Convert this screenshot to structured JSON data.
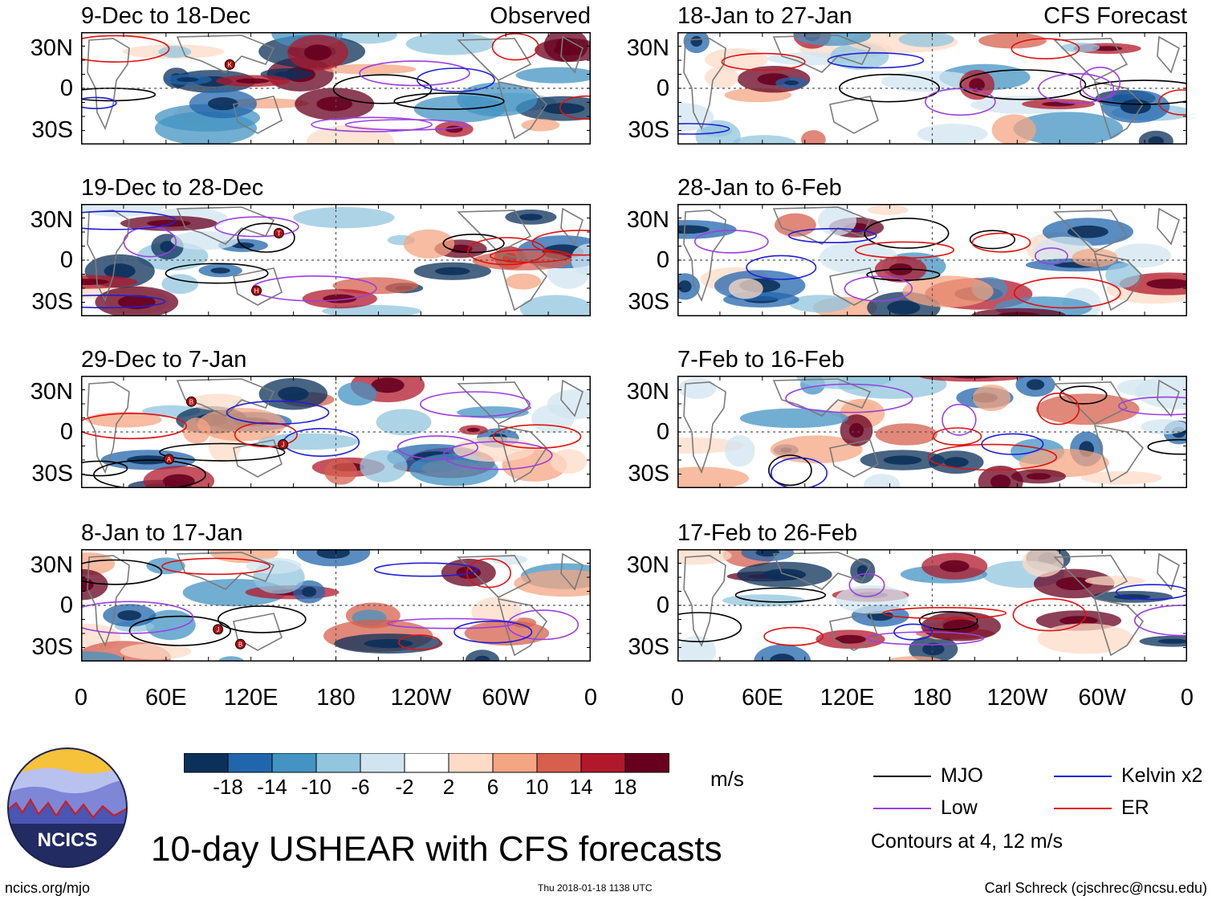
{
  "chart_data": {
    "type": "heatmap",
    "title": "10-day USHEAR with CFS forecasts",
    "units": "m/s",
    "color_levels": [
      -18,
      -14,
      -10,
      -6,
      -2,
      2,
      6,
      10,
      14,
      18
    ],
    "colors": [
      "#0b305a",
      "#2166ac",
      "#4393c3",
      "#92c5de",
      "#d1e5f0",
      "#ffffff",
      "#fddbc7",
      "#f4a582",
      "#d6604d",
      "#b2182b",
      "#67001f"
    ],
    "lat_ticks": [
      "30N",
      "0",
      "30S"
    ],
    "lon_ticks": [
      "0",
      "60E",
      "120E",
      "180",
      "120W",
      "60W",
      "0"
    ],
    "contour_note": "Contours at 4, 12 m/s",
    "columns": [
      {
        "label": "Observed",
        "panels": [
          "9-Dec to 18-Dec",
          "19-Dec to 28-Dec",
          "29-Dec to 7-Jan",
          "8-Jan to 17-Jan"
        ]
      },
      {
        "label": "CFS Forecast",
        "panels": [
          "18-Jan to 27-Jan",
          "28-Jan to 6-Feb",
          "7-Feb to 16-Feb",
          "17-Feb to 26-Feb"
        ]
      }
    ],
    "legend": [
      {
        "label": "MJO",
        "color": "#000000"
      },
      {
        "label": "Kelvin x2",
        "color": "#1f1fd6"
      },
      {
        "label": "Low",
        "color": "#9b3fe0"
      },
      {
        "label": "ER",
        "color": "#e01010"
      }
    ]
  },
  "labels": {
    "observed": "Observed",
    "forecast": "CFS Forecast",
    "units": "m/s",
    "contours": "Contours at 4, 12 m/s",
    "title": "10-day USHEAR with CFS forecasts",
    "logo_text": "NCICS",
    "url": "ncics.org/mjo",
    "timestamp": "Thu 2018-01-18 1138 UTC",
    "credit": "Carl Schreck (cjschrec@ncsu.edu)"
  },
  "cyclone_markers": [
    {
      "panel": 0,
      "letter": "K"
    },
    {
      "panel": 1,
      "letter": "T"
    },
    {
      "panel": 1,
      "letter": "H"
    },
    {
      "panel": 2,
      "letter": "B"
    },
    {
      "panel": 2,
      "letter": "A"
    },
    {
      "panel": 2,
      "letter": "J"
    },
    {
      "panel": 3,
      "letter": "B"
    },
    {
      "panel": 3,
      "letter": "J"
    }
  ]
}
